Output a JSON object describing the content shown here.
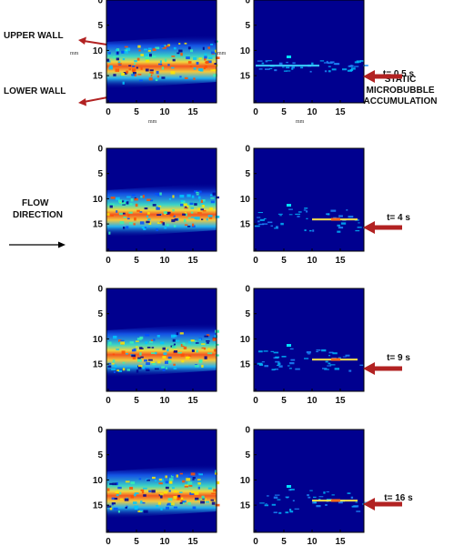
{
  "labels": {
    "upper_wall": "UPPER WALL",
    "lower_wall": "LOWER WALL",
    "flow_line1": "FLOW",
    "flow_line2": "DIRECTION",
    "static_line1": "STATIC",
    "static_line2": "MICROBUBBLE",
    "static_line3": "ACCUMULATION",
    "unit": "mm"
  },
  "axis": {
    "x_ticks": [
      "0",
      "5",
      "10",
      "15"
    ],
    "y_ticks": [
      "0",
      "5",
      "10",
      "15"
    ]
  },
  "rows": [
    {
      "time": "t= 0.5 s"
    },
    {
      "time": "t= 4 s"
    },
    {
      "time": "t= 9 s"
    },
    {
      "time": "t= 16 s"
    }
  ],
  "colors": {
    "plot_background": "#00008f",
    "arrow_red": "#b22222",
    "arrow_black": "#000000"
  }
}
